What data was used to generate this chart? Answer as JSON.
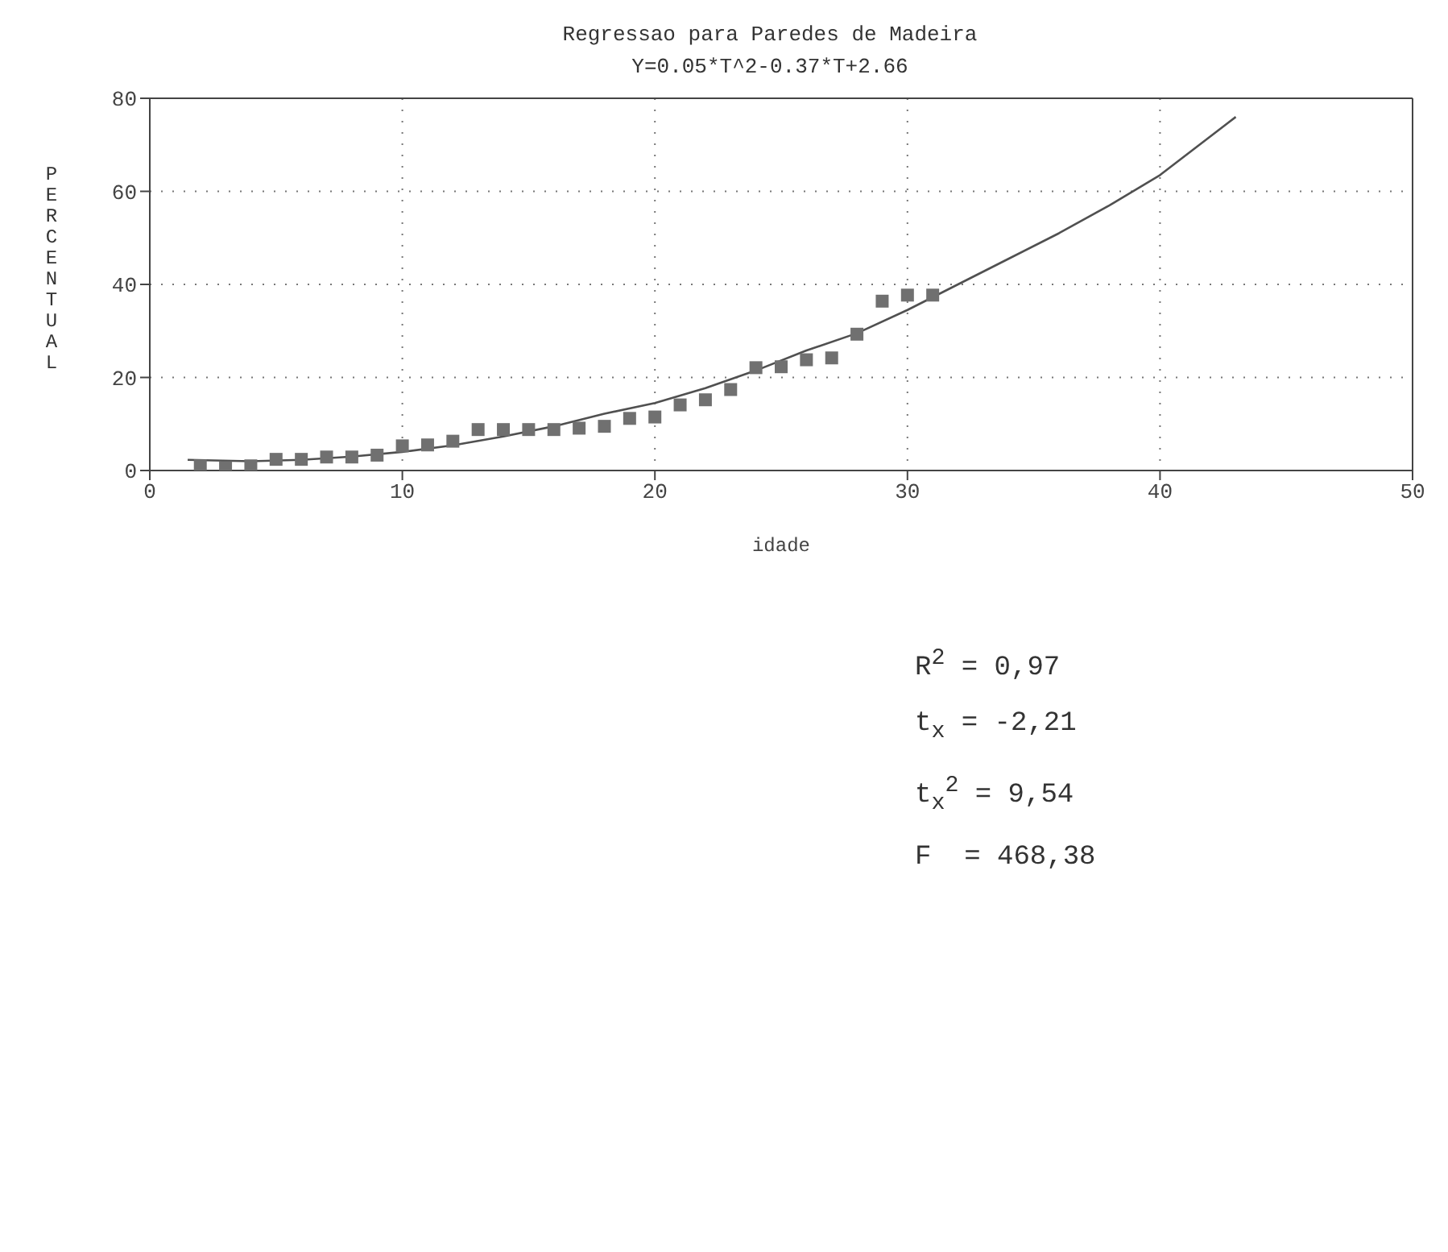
{
  "chart_data": {
    "type": "scatter",
    "title": "Regressao para Paredes de Madeira",
    "subtitle": "Y=0.05*T^2-0.37*T+2.66",
    "xlabel": "idade",
    "ylabel": "PERCENTUAL",
    "xlim": [
      0,
      50
    ],
    "xticks": [
      0,
      10,
      20,
      30,
      40,
      50
    ],
    "ylim": [
      0,
      80
    ],
    "yticks": [
      0,
      20,
      40,
      60,
      80
    ],
    "grid": true,
    "series": [
      {
        "color": "#707070",
        "marker": "square",
        "x": [
          2,
          3,
          4,
          5,
          6,
          7,
          8,
          9,
          10,
          11,
          12,
          13,
          14,
          15,
          16,
          17,
          18,
          19,
          20,
          21,
          22,
          23,
          24,
          25,
          26,
          27,
          28,
          29,
          30,
          31
        ],
        "values": [
          1.0,
          0.6,
          1.0,
          2.4,
          2.4,
          2.9,
          2.9,
          3.3,
          5.3,
          5.5,
          6.3,
          8.8,
          8.8,
          8.8,
          8.8,
          9.1,
          9.5,
          11.2,
          11.5,
          14.1,
          15.2,
          17.4,
          22.1,
          22.3,
          23.8,
          24.2,
          29.3,
          36.4,
          37.7,
          37.7
        ]
      },
      {
        "type": "line",
        "color": "#505050",
        "marker": "none",
        "line_style": "solid",
        "x": [
          1.5,
          4,
          6,
          8,
          10,
          12,
          14,
          16,
          18,
          20,
          22,
          24,
          26,
          28,
          30,
          32,
          34,
          36,
          38,
          40,
          43
        ],
        "values": [
          2.3,
          2.0,
          2.3,
          3.0,
          4.0,
          5.4,
          7.3,
          9.5,
          12.2,
          14.5,
          17.7,
          21.5,
          25.8,
          29.5,
          34.5,
          40,
          45.5,
          51,
          57,
          63.5,
          76
        ]
      }
    ],
    "annotations": [
      "R$^{2}$ = 0,97",
      "t$_{x}$ = -2,21",
      "t$_{x}$$^{2}$ = 9,54",
      "F  = 468,38"
    ]
  }
}
